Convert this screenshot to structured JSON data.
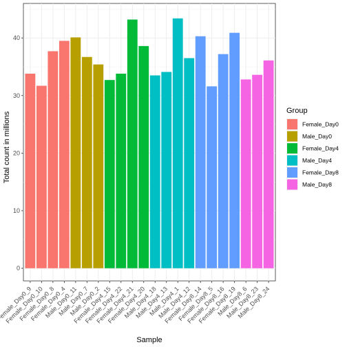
{
  "chart_data": {
    "type": "bar",
    "xlabel": "Sample",
    "ylabel": "Total count in millions",
    "ylim": [
      -2.2,
      46
    ],
    "yticks": [
      0,
      10,
      20,
      30,
      40
    ],
    "grid": true,
    "legend_placement": "right",
    "legend_title": "Group",
    "groups": [
      {
        "name": "Female_Day0",
        "color": "#F8766D"
      },
      {
        "name": "Male_Day0",
        "color": "#B79F00"
      },
      {
        "name": "Female_Day4",
        "color": "#00BA38"
      },
      {
        "name": "Male_Day4",
        "color": "#00BFC4"
      },
      {
        "name": "Female_Day8",
        "color": "#619CFF"
      },
      {
        "name": "Male_Day8",
        "color": "#F564E3"
      }
    ],
    "categories": [
      "Female_Day0_9",
      "Female_Day0_10",
      "Female_Day0_8",
      "Female_Day0_4",
      "Male_Day0_11",
      "Male_Day0_7",
      "Male_Day0_2",
      "Female_Day4_15",
      "Female_Day4_22",
      "Female_Day4_21",
      "Female_Day4_20",
      "Male_Day4_18",
      "Male_Day4_13",
      "Male_Day4_1",
      "Male_Day4_12",
      "Female_Day8_14",
      "Female_Day8_5",
      "Female_Day8_16",
      "Female_Day8_19",
      "Male_Day8_6",
      "Male_Day8_23",
      "Male_Day8_24"
    ],
    "values": [
      33.8,
      31.7,
      37.7,
      39.5,
      40.1,
      36.7,
      35.4,
      32.7,
      33.8,
      43.2,
      38.6,
      33.5,
      34.1,
      43.4,
      36.5,
      40.3,
      31.6,
      37.2,
      40.9,
      32.8,
      33.6,
      36.1
    ],
    "group_index": [
      0,
      0,
      0,
      0,
      1,
      1,
      1,
      2,
      2,
      2,
      2,
      3,
      3,
      3,
      3,
      4,
      4,
      4,
      4,
      5,
      5,
      5
    ]
  }
}
